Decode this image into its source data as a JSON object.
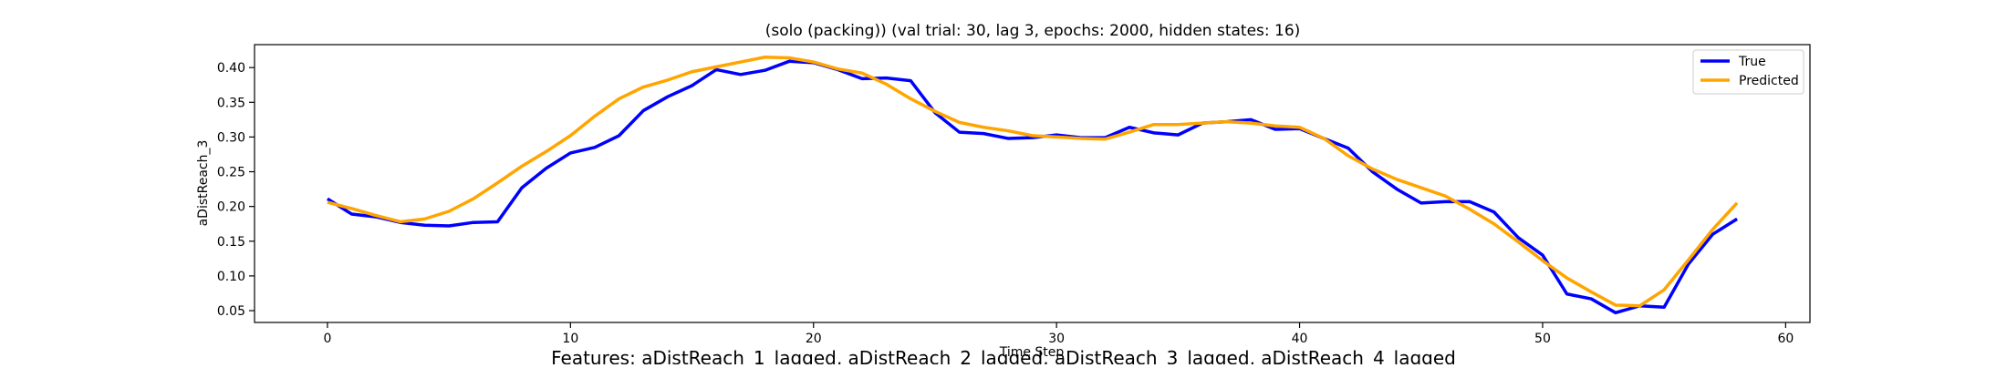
{
  "chart_data": {
    "type": "line",
    "title": "(solo (packing)) (val trial: 30, lag 3, epochs: 2000, hidden states: 16)",
    "xlabel": "Time Step",
    "ylabel": "aDistReach_3",
    "xlim": [
      -3,
      61
    ],
    "ylim": [
      0.033,
      0.433
    ],
    "xticks": [
      0,
      10,
      20,
      30,
      40,
      50,
      60
    ],
    "yticks": [
      0.05,
      0.1,
      0.15,
      0.2,
      0.25,
      0.3,
      0.35,
      0.4
    ],
    "ytick_labels": [
      "0.05",
      "0.10",
      "0.15",
      "0.20",
      "0.25",
      "0.30",
      "0.35",
      "0.40"
    ],
    "grid": false,
    "legend_position": "top-right",
    "colors": {
      "True": "#0000ff",
      "Predicted": "#ffa500"
    },
    "series": [
      {
        "name": "True",
        "x": [
          0,
          1,
          2,
          3,
          4,
          5,
          6,
          7,
          8,
          9,
          10,
          11,
          12,
          13,
          14,
          15,
          16,
          17,
          18,
          19,
          20,
          21,
          22,
          23,
          24,
          25,
          26,
          27,
          28,
          29,
          30,
          31,
          32,
          33,
          34,
          35,
          36,
          37,
          38,
          39,
          40,
          41,
          42,
          43,
          44,
          45,
          46,
          47,
          48,
          49,
          50,
          51,
          52,
          53,
          54,
          55,
          56,
          57,
          58
        ],
        "values": [
          0.211,
          0.189,
          0.185,
          0.177,
          0.173,
          0.172,
          0.177,
          0.178,
          0.227,
          0.255,
          0.277,
          0.285,
          0.302,
          0.338,
          0.358,
          0.374,
          0.397,
          0.39,
          0.396,
          0.409,
          0.407,
          0.397,
          0.384,
          0.385,
          0.381,
          0.335,
          0.307,
          0.305,
          0.298,
          0.299,
          0.303,
          0.299,
          0.299,
          0.314,
          0.306,
          0.303,
          0.32,
          0.322,
          0.325,
          0.311,
          0.312,
          0.298,
          0.284,
          0.25,
          0.225,
          0.205,
          0.207,
          0.207,
          0.192,
          0.155,
          0.13,
          0.074,
          0.067,
          0.047,
          0.057,
          0.055,
          0.117,
          0.16,
          0.182
        ]
      },
      {
        "name": "Predicted",
        "x": [
          0,
          1,
          2,
          3,
          4,
          5,
          6,
          7,
          8,
          9,
          10,
          11,
          12,
          13,
          14,
          15,
          16,
          17,
          18,
          19,
          20,
          21,
          22,
          23,
          24,
          25,
          26,
          27,
          28,
          29,
          30,
          31,
          32,
          33,
          34,
          35,
          36,
          37,
          38,
          39,
          40,
          41,
          42,
          43,
          44,
          45,
          46,
          47,
          48,
          49,
          50,
          51,
          52,
          53,
          54,
          55,
          56,
          57,
          58
        ],
        "values": [
          0.206,
          0.197,
          0.187,
          0.178,
          0.182,
          0.193,
          0.211,
          0.234,
          0.258,
          0.279,
          0.302,
          0.33,
          0.355,
          0.372,
          0.382,
          0.394,
          0.401,
          0.408,
          0.415,
          0.414,
          0.408,
          0.398,
          0.392,
          0.376,
          0.355,
          0.337,
          0.321,
          0.314,
          0.309,
          0.302,
          0.3,
          0.298,
          0.297,
          0.307,
          0.318,
          0.318,
          0.32,
          0.322,
          0.32,
          0.316,
          0.314,
          0.298,
          0.273,
          0.254,
          0.239,
          0.227,
          0.215,
          0.196,
          0.175,
          0.149,
          0.122,
          0.097,
          0.077,
          0.058,
          0.057,
          0.08,
          0.123,
          0.167,
          0.205
        ]
      }
    ],
    "footer_text": "Features: aDistReach_1_lagged, aDistReach_2_lagged, aDistReach_3_lagged, aDistReach_4_lagged"
  }
}
